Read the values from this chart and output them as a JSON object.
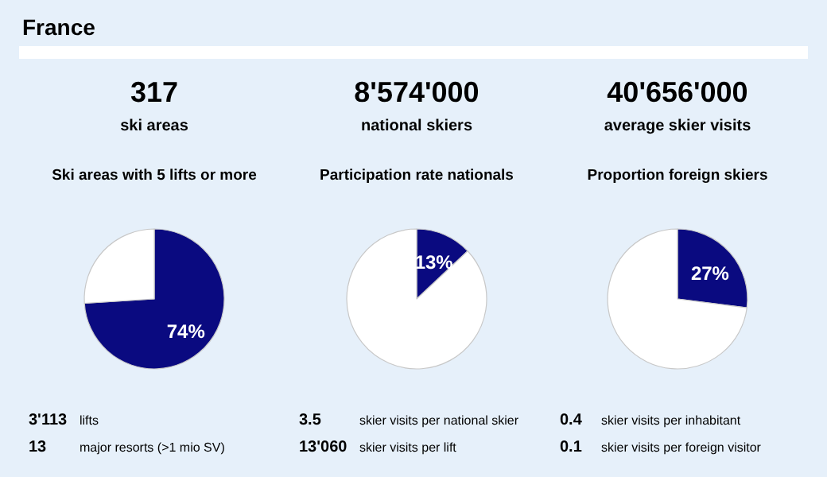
{
  "chart_data": [
    {
      "type": "other",
      "title": "France"
    },
    {
      "type": "pie",
      "title": "Ski areas with 5 lifts or more",
      "categories": [
        null,
        null
      ],
      "values": [
        74,
        26
      ],
      "colors": [
        "#0a0a80",
        "#ffffff"
      ],
      "value_labels": [
        "74%",
        null
      ],
      "annotations": [
        "317",
        "ski areas",
        "3'113 lifts",
        "13 major resorts (>1 mio SV)"
      ]
    },
    {
      "type": "pie",
      "title": "Participation rate nationals",
      "categories": [
        null,
        null
      ],
      "values": [
        13,
        87
      ],
      "colors": [
        "#0a0a80",
        "#ffffff"
      ],
      "value_labels": [
        "13%",
        null
      ],
      "annotations": [
        "8'574'000",
        "national skiers",
        "3.5 skier visits per national skier",
        "13'060 skier visits per lift"
      ]
    },
    {
      "type": "pie",
      "title": "Proportion foreign skiers",
      "categories": [
        null,
        null
      ],
      "values": [
        27,
        73
      ],
      "colors": [
        "#0a0a80",
        "#ffffff"
      ],
      "value_labels": [
        "27%",
        null
      ],
      "annotations": [
        "40'656'000",
        "average skier visits",
        "0.4 skier visits per inhabitant",
        "0.1 skier visits per foreign visitor"
      ]
    }
  ]
}
